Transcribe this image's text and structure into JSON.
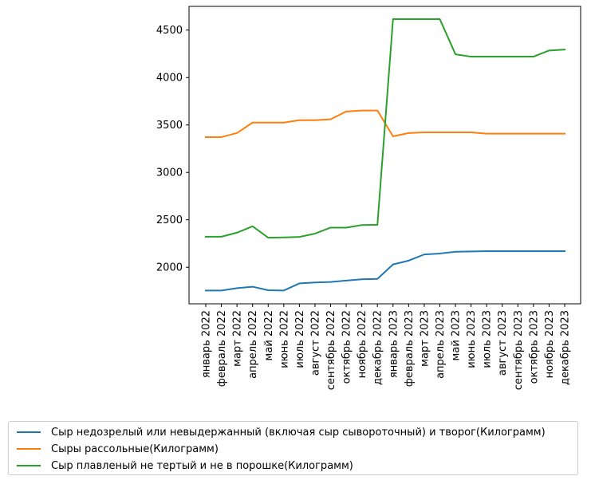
{
  "chart_data": {
    "type": "line",
    "categories": [
      "январь 2022",
      "февраль 2022",
      "март 2022",
      "апрель 2022",
      "май 2022",
      "июнь 2022",
      "июль 2022",
      "август 2022",
      "сентябрь 2022",
      "октябрь 2022",
      "ноябрь 2022",
      "декабрь 2022",
      "январь 2023",
      "февраль 2023",
      "март 2023",
      "апрель 2023",
      "май 2023",
      "июнь 2023",
      "июль 2023",
      "август 2023",
      "сентябрь 2023",
      "октябрь 2023",
      "ноябрь 2023",
      "декабрь 2023"
    ],
    "yticks": [
      2000,
      2500,
      3000,
      3500,
      4000,
      4500
    ],
    "ylim": [
      1615,
      4750
    ],
    "grid": false,
    "legend_position": "bottom",
    "series": [
      {
        "name": "Сыр недозрелый или невыдержанный (включая сыр сывороточный) и творог(Килограмм)",
        "color": "#1f77b4",
        "values": [
          1755,
          1755,
          1780,
          1795,
          1758,
          1755,
          1830,
          1840,
          1845,
          1860,
          1873,
          1878,
          2030,
          2070,
          2135,
          2145,
          2163,
          2167,
          2170,
          2170,
          2170,
          2170,
          2170,
          2170
        ]
      },
      {
        "name": "Сыры рассольные(Килограмм)",
        "color": "#ff7f0e",
        "values": [
          3372,
          3372,
          3415,
          3525,
          3525,
          3525,
          3550,
          3550,
          3560,
          3642,
          3652,
          3652,
          3380,
          3415,
          3422,
          3422,
          3422,
          3422,
          3408,
          3408,
          3408,
          3408,
          3408,
          3408
        ]
      },
      {
        "name": "Сыр плавленый не тертый и не в порошке(Килограмм)",
        "color": "#2ca02c",
        "values": [
          2322,
          2322,
          2365,
          2432,
          2312,
          2315,
          2320,
          2355,
          2418,
          2418,
          2445,
          2448,
          4615,
          4615,
          4615,
          4615,
          4245,
          4220,
          4220,
          4220,
          4220,
          4220,
          4285,
          4295
        ]
      }
    ]
  }
}
